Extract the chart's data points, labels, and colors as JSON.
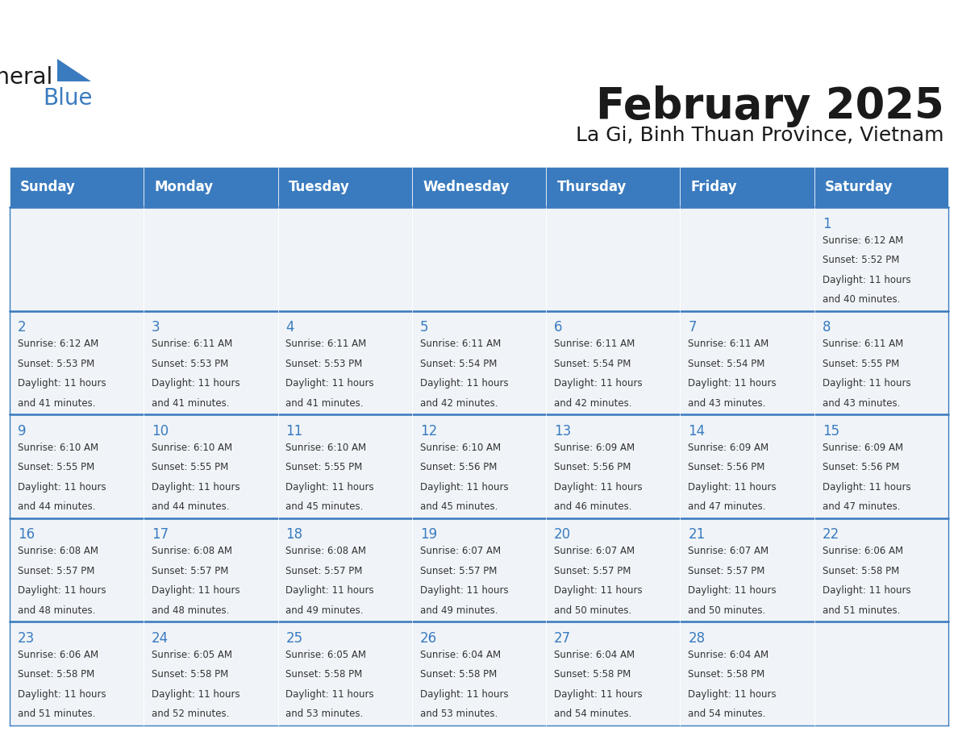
{
  "title": "February 2025",
  "subtitle": "La Gi, Binh Thuan Province, Vietnam",
  "header_color": "#3a7bbf",
  "header_text_color": "#ffffff",
  "cell_bg_even": "#f0f4f8",
  "cell_bg_odd": "#ffffff",
  "day_number_color": "#3a7bbf",
  "text_color": "#333333",
  "border_color": "#3a7bbf",
  "days_of_week": [
    "Sunday",
    "Monday",
    "Tuesday",
    "Wednesday",
    "Thursday",
    "Friday",
    "Saturday"
  ],
  "calendar_data": [
    [
      null,
      null,
      null,
      null,
      null,
      null,
      {
        "day": 1,
        "sunrise": "6:12 AM",
        "sunset": "5:52 PM",
        "daylight_hours": 11,
        "daylight_minutes": 40
      }
    ],
    [
      {
        "day": 2,
        "sunrise": "6:12 AM",
        "sunset": "5:53 PM",
        "daylight_hours": 11,
        "daylight_minutes": 41
      },
      {
        "day": 3,
        "sunrise": "6:11 AM",
        "sunset": "5:53 PM",
        "daylight_hours": 11,
        "daylight_minutes": 41
      },
      {
        "day": 4,
        "sunrise": "6:11 AM",
        "sunset": "5:53 PM",
        "daylight_hours": 11,
        "daylight_minutes": 41
      },
      {
        "day": 5,
        "sunrise": "6:11 AM",
        "sunset": "5:54 PM",
        "daylight_hours": 11,
        "daylight_minutes": 42
      },
      {
        "day": 6,
        "sunrise": "6:11 AM",
        "sunset": "5:54 PM",
        "daylight_hours": 11,
        "daylight_minutes": 42
      },
      {
        "day": 7,
        "sunrise": "6:11 AM",
        "sunset": "5:54 PM",
        "daylight_hours": 11,
        "daylight_minutes": 43
      },
      {
        "day": 8,
        "sunrise": "6:11 AM",
        "sunset": "5:55 PM",
        "daylight_hours": 11,
        "daylight_minutes": 43
      }
    ],
    [
      {
        "day": 9,
        "sunrise": "6:10 AM",
        "sunset": "5:55 PM",
        "daylight_hours": 11,
        "daylight_minutes": 44
      },
      {
        "day": 10,
        "sunrise": "6:10 AM",
        "sunset": "5:55 PM",
        "daylight_hours": 11,
        "daylight_minutes": 44
      },
      {
        "day": 11,
        "sunrise": "6:10 AM",
        "sunset": "5:55 PM",
        "daylight_hours": 11,
        "daylight_minutes": 45
      },
      {
        "day": 12,
        "sunrise": "6:10 AM",
        "sunset": "5:56 PM",
        "daylight_hours": 11,
        "daylight_minutes": 45
      },
      {
        "day": 13,
        "sunrise": "6:09 AM",
        "sunset": "5:56 PM",
        "daylight_hours": 11,
        "daylight_minutes": 46
      },
      {
        "day": 14,
        "sunrise": "6:09 AM",
        "sunset": "5:56 PM",
        "daylight_hours": 11,
        "daylight_minutes": 47
      },
      {
        "day": 15,
        "sunrise": "6:09 AM",
        "sunset": "5:56 PM",
        "daylight_hours": 11,
        "daylight_minutes": 47
      }
    ],
    [
      {
        "day": 16,
        "sunrise": "6:08 AM",
        "sunset": "5:57 PM",
        "daylight_hours": 11,
        "daylight_minutes": 48
      },
      {
        "day": 17,
        "sunrise": "6:08 AM",
        "sunset": "5:57 PM",
        "daylight_hours": 11,
        "daylight_minutes": 48
      },
      {
        "day": 18,
        "sunrise": "6:08 AM",
        "sunset": "5:57 PM",
        "daylight_hours": 11,
        "daylight_minutes": 49
      },
      {
        "day": 19,
        "sunrise": "6:07 AM",
        "sunset": "5:57 PM",
        "daylight_hours": 11,
        "daylight_minutes": 49
      },
      {
        "day": 20,
        "sunrise": "6:07 AM",
        "sunset": "5:57 PM",
        "daylight_hours": 11,
        "daylight_minutes": 50
      },
      {
        "day": 21,
        "sunrise": "6:07 AM",
        "sunset": "5:57 PM",
        "daylight_hours": 11,
        "daylight_minutes": 50
      },
      {
        "day": 22,
        "sunrise": "6:06 AM",
        "sunset": "5:58 PM",
        "daylight_hours": 11,
        "daylight_minutes": 51
      }
    ],
    [
      {
        "day": 23,
        "sunrise": "6:06 AM",
        "sunset": "5:58 PM",
        "daylight_hours": 11,
        "daylight_minutes": 51
      },
      {
        "day": 24,
        "sunrise": "6:05 AM",
        "sunset": "5:58 PM",
        "daylight_hours": 11,
        "daylight_minutes": 52
      },
      {
        "day": 25,
        "sunrise": "6:05 AM",
        "sunset": "5:58 PM",
        "daylight_hours": 11,
        "daylight_minutes": 53
      },
      {
        "day": 26,
        "sunrise": "6:04 AM",
        "sunset": "5:58 PM",
        "daylight_hours": 11,
        "daylight_minutes": 53
      },
      {
        "day": 27,
        "sunrise": "6:04 AM",
        "sunset": "5:58 PM",
        "daylight_hours": 11,
        "daylight_minutes": 54
      },
      {
        "day": 28,
        "sunrise": "6:04 AM",
        "sunset": "5:58 PM",
        "daylight_hours": 11,
        "daylight_minutes": 54
      },
      null
    ]
  ],
  "logo_text_general": "General",
  "logo_text_blue": "Blue",
  "logo_color_general": "#1a1a1a",
  "logo_color_blue": "#3a7bbf",
  "logo_triangle_color": "#3a7bbf"
}
